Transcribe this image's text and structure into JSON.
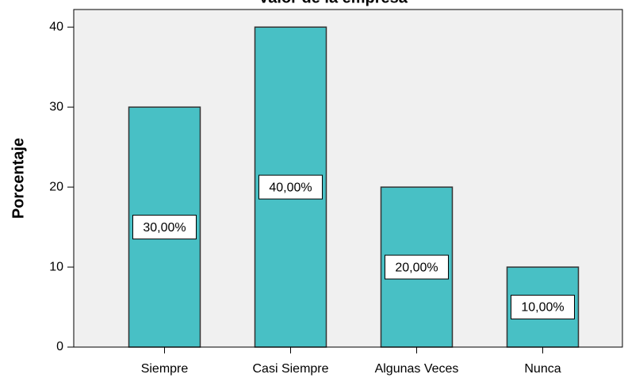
{
  "chart_data": {
    "type": "bar",
    "title": "Valor de la empresa",
    "y_label": "Porcentaje",
    "categories": [
      "Siempre",
      "Casi Siempre",
      "Algunas Veces",
      "Nunca"
    ],
    "values": [
      30,
      40,
      20,
      10
    ],
    "value_labels": [
      "30,00%",
      "40,00%",
      "20,00%",
      "10,00%"
    ],
    "color": "#48c0c5",
    "ylim": [
      0,
      42.2
    ],
    "yticks": [
      0,
      10,
      20,
      30,
      40
    ],
    "grid": false
  }
}
